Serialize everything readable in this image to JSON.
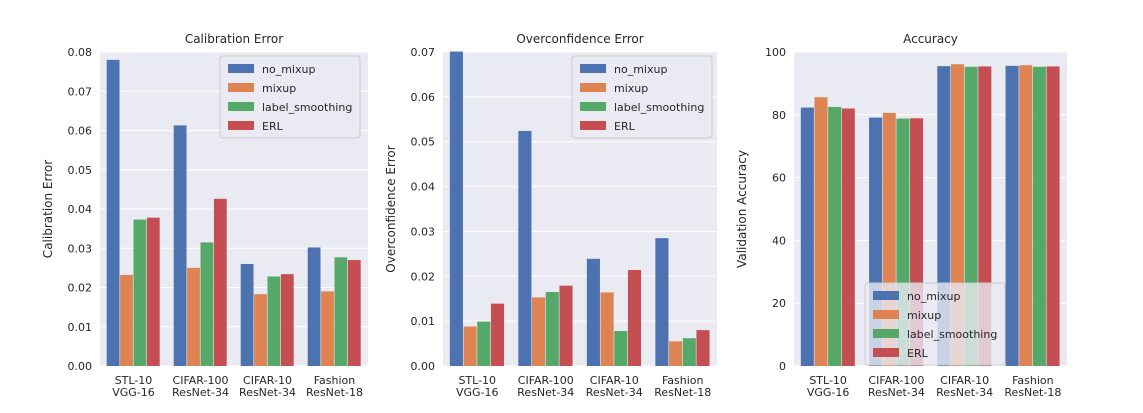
{
  "colors": {
    "no_mixup": "#4c72b0",
    "mixup": "#dd8452",
    "label_smoothing": "#55a868",
    "ERL": "#c44e52"
  },
  "chart_data": [
    {
      "type": "bar",
      "title": "Calibration Error",
      "xlabel": "",
      "ylabel": "Calibration Error",
      "ylim": [
        0,
        0.08
      ],
      "yticks": [
        "0.00",
        "0.01",
        "0.02",
        "0.03",
        "0.04",
        "0.05",
        "0.06",
        "0.07",
        "0.08"
      ],
      "ytick_values": [
        0,
        0.01,
        0.02,
        0.03,
        0.04,
        0.05,
        0.06,
        0.07,
        0.08
      ],
      "categories": [
        "STL-10\nVGG-16",
        "CIFAR-100\nResNet-34",
        "CIFAR-10\nResNet-34",
        "Fashion\nResNet-18"
      ],
      "legend_position": "top-right",
      "series": [
        {
          "name": "no_mixup",
          "values": [
            0.078,
            0.0613,
            0.026,
            0.0302
          ]
        },
        {
          "name": "mixup",
          "values": [
            0.0232,
            0.025,
            0.0183,
            0.019
          ]
        },
        {
          "name": "label_smoothing",
          "values": [
            0.0373,
            0.0315,
            0.0228,
            0.0277
          ]
        },
        {
          "name": "ERL",
          "values": [
            0.0378,
            0.0426,
            0.0234,
            0.027
          ]
        }
      ]
    },
    {
      "type": "bar",
      "title": "Overconfidence Error",
      "xlabel": "",
      "ylabel": "Overconfidence Error",
      "ylim": [
        0,
        0.07
      ],
      "yticks": [
        "0.00",
        "0.01",
        "0.02",
        "0.03",
        "0.04",
        "0.05",
        "0.06",
        "0.07"
      ],
      "ytick_values": [
        0,
        0.01,
        0.02,
        0.03,
        0.04,
        0.05,
        0.06,
        0.07
      ],
      "categories": [
        "STL-10\nVGG-16",
        "CIFAR-100\nResNet-34",
        "CIFAR-10\nResNet-34",
        "Fashion\nResNet-18"
      ],
      "legend_position": "top-right",
      "series": [
        {
          "name": "no_mixup",
          "values": [
            0.0701,
            0.0524,
            0.0239,
            0.0285
          ]
        },
        {
          "name": "mixup",
          "values": [
            0.0088,
            0.0153,
            0.0164,
            0.0055
          ]
        },
        {
          "name": "label_smoothing",
          "values": [
            0.0099,
            0.0165,
            0.0078,
            0.0062
          ]
        },
        {
          "name": "ERL",
          "values": [
            0.0139,
            0.0179,
            0.0214,
            0.008
          ]
        }
      ]
    },
    {
      "type": "bar",
      "title": "Accuracy",
      "xlabel": "",
      "ylabel": "Validation Accuracy",
      "ylim": [
        0,
        100
      ],
      "yticks": [
        "0",
        "20",
        "40",
        "60",
        "80",
        "100"
      ],
      "ytick_values": [
        0,
        20,
        40,
        60,
        80,
        100
      ],
      "categories": [
        "STL-10\nVGG-16",
        "CIFAR-100\nResNet-34",
        "CIFAR-10\nResNet-34",
        "Fashion\nResNet-18"
      ],
      "legend_position": "lower-center",
      "series": [
        {
          "name": "no_mixup",
          "values": [
            82.3,
            79.1,
            95.5,
            95.6
          ]
        },
        {
          "name": "mixup",
          "values": [
            85.6,
            80.6,
            96.1,
            95.8
          ]
        },
        {
          "name": "label_smoothing",
          "values": [
            82.5,
            78.8,
            95.3,
            95.3
          ]
        },
        {
          "name": "ERL",
          "values": [
            82.0,
            78.9,
            95.4,
            95.4
          ]
        }
      ]
    }
  ]
}
